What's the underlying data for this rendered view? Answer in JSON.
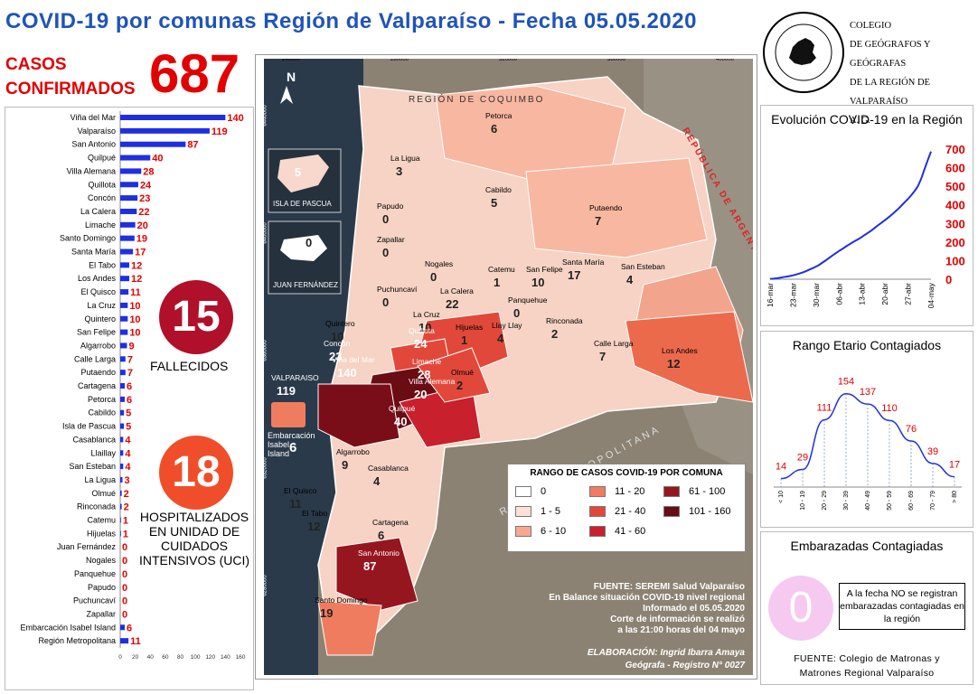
{
  "header": {
    "title": "COVID-19 por comunas Región de Valparaíso - Fecha 05.05.2020",
    "casos_line1": "CASOS",
    "casos_line2": "CONFIRMADOS",
    "casos_value": "687"
  },
  "college": {
    "line1": "COLEGIO",
    "line2": "DE GEÓGRAFOS Y GEÓGRAFAS",
    "line3": "DE LA REGIÓN DE VALPARAÍSO",
    "line4": "A. G."
  },
  "fallecidos": {
    "value": "15",
    "label": "FALLECIDOS"
  },
  "hospitalizados": {
    "value": "18",
    "label": "HOSPITALIZADOS EN UNIDAD DE CUIDADOS INTENSIVOS (UCI)"
  },
  "legend": {
    "title": "RANGO DE CASOS COVID-19 POR COMUNA",
    "items": [
      {
        "label": "0",
        "color": "#ffffff"
      },
      {
        "label": "1 - 5",
        "color": "#fde0d6"
      },
      {
        "label": "6 - 10",
        "color": "#f7a88e"
      },
      {
        "label": "11 - 20",
        "color": "#f07c60"
      },
      {
        "label": "21 - 40",
        "color": "#e2483a"
      },
      {
        "label": "41 - 60",
        "color": "#c8202c"
      },
      {
        "label": "61 - 100",
        "color": "#961620"
      },
      {
        "label": "101 - 160",
        "color": "#6a0c14"
      }
    ]
  },
  "map_text": {
    "fuente": [
      "FUENTE: SEREMI Salud Valparaíso",
      "En Balance situación COVID-19 nivel regional",
      "Informado el 05.05.2020",
      "Corte de información se realizó",
      "a las 21:00 horas del 04 mayo"
    ],
    "elaboracion": [
      "ELABORACIÓN: Ingrid Ibarra Amaya",
      "Geógrafa - Registro N° 0027"
    ],
    "region_coquimbo": "REGIÓN DE COQUIMBO",
    "region_metropolitana": "REGIÓN METROPOLITANA",
    "argentina": "REPÚBLICA DE ARGENTINA",
    "isla_pascua": "ISLA DE PASCUA",
    "isla_pascua_num": "5",
    "juan_fernandez": "JUAN FERNÁNDEZ",
    "juan_fernandez_num": "0",
    "embarcacion": "Embarcación Isabel Island",
    "embarcacion_num": "6",
    "north": "N",
    "comunas": [
      {
        "name": "Petorca",
        "value": "6"
      },
      {
        "name": "La Ligua",
        "value": "3"
      },
      {
        "name": "Cabildo",
        "value": "5"
      },
      {
        "name": "Putaendo",
        "value": "7"
      },
      {
        "name": "Papudo",
        "value": "0"
      },
      {
        "name": "Zapallar",
        "value": "0"
      },
      {
        "name": "Nogales",
        "value": "0"
      },
      {
        "name": "Catemu",
        "value": "1"
      },
      {
        "name": "San Felipe",
        "value": "10"
      },
      {
        "name": "Santa María",
        "value": "17"
      },
      {
        "name": "San Esteban",
        "value": "4"
      },
      {
        "name": "Puchuncaví",
        "value": "0"
      },
      {
        "name": "La Calera",
        "value": "22"
      },
      {
        "name": "Panquehue",
        "value": "0"
      },
      {
        "name": "Quintero",
        "value": "10"
      },
      {
        "name": "La Cruz",
        "value": "10"
      },
      {
        "name": "Hijuelas",
        "value": "1"
      },
      {
        "name": "Llay Llay",
        "value": "4"
      },
      {
        "name": "Rinconada",
        "value": "2"
      },
      {
        "name": "Concón",
        "value": "23"
      },
      {
        "name": "Quillota",
        "value": "24"
      },
      {
        "name": "Calle Larga",
        "value": "7"
      },
      {
        "name": "Los Andes",
        "value": "12"
      },
      {
        "name": "Viña del Mar",
        "value": "140"
      },
      {
        "name": "Limache",
        "value": "28"
      },
      {
        "name": "Villa Alemana",
        "value": "20"
      },
      {
        "name": "Olmué",
        "value": "2"
      },
      {
        "name": "VALPARAISO",
        "value": "119"
      },
      {
        "name": "Quilpué",
        "value": "40"
      },
      {
        "name": "Algarrobo",
        "value": "9"
      },
      {
        "name": "Casablanca",
        "value": "4"
      },
      {
        "name": "El Quisco",
        "value": "11"
      },
      {
        "name": "El Tabo",
        "value": "12"
      },
      {
        "name": "Cartagena",
        "value": "6"
      },
      {
        "name": "San Antonio",
        "value": "87"
      },
      {
        "name": "Santo Domingo",
        "value": "19"
      }
    ],
    "coord_top": [
      "240000",
      "280000",
      "320000",
      "360000",
      "400000"
    ],
    "coord_left": [
      "6440000",
      "6400000",
      "6360000",
      "6320000",
      "6280000"
    ]
  },
  "evolution": {
    "title": "Evolución COVID-19 en la Región"
  },
  "age": {
    "title": "Rango Etario Contagiados"
  },
  "embarazadas": {
    "title": "Embarazadas Contagiadas",
    "value": "0",
    "note": "A la fecha NO se registran embarazadas contagiadas en la región",
    "source_line1": "FUENTE: Colegio de Matronas y",
    "source_line2": "Matrones Regional Valparaíso"
  },
  "chart_data": [
    {
      "type": "bar",
      "orientation": "horizontal",
      "categories": [
        "Viña del Mar",
        "Valparaíso",
        "San Antonio",
        "Quilpué",
        "Villa Alemana",
        "Quillota",
        "Concón",
        "La Calera",
        "Limache",
        "Santo Domingo",
        "Santa María",
        "El Tabo",
        "Los Andes",
        "El Quisco",
        "La Cruz",
        "Quintero",
        "San Felipe",
        "Algarrobo",
        "Calle Larga",
        "Putaendo",
        "Cartagena",
        "Petorca",
        "Cabildo",
        "Isla de Pascua",
        "Casablanca",
        "Llaillay",
        "San Esteban",
        "La Ligua",
        "Olmué",
        "Rinconada",
        "Catemu",
        "Hijuelas",
        "Juan Fernández",
        "Nogales",
        "Panquehue",
        "Papudo",
        "Puchuncaví",
        "Zapallar",
        "Embarcación Isabel Island",
        "Región Metropolitana"
      ],
      "values": [
        140,
        119,
        87,
        40,
        28,
        24,
        23,
        22,
        20,
        19,
        17,
        12,
        12,
        11,
        10,
        10,
        10,
        9,
        7,
        7,
        6,
        6,
        5,
        5,
        4,
        4,
        4,
        3,
        2,
        2,
        1,
        1,
        0,
        0,
        0,
        0,
        0,
        0,
        6,
        11
      ],
      "xlim": [
        0,
        160
      ],
      "xticks": [
        "0",
        "20",
        "40",
        "60",
        "80",
        "100",
        "120",
        "140",
        "160"
      ],
      "bar_color": "#1f2fe0",
      "label_color": "#e20000"
    },
    {
      "type": "line",
      "title": "Evolución COVID-19 en la Región",
      "x": [
        "16-mar",
        "17-mar",
        "18-mar",
        "19-mar",
        "20-mar",
        "21-mar",
        "22-mar",
        "23-mar",
        "24-mar",
        "25-mar",
        "26-mar",
        "27-mar",
        "28-mar",
        "29-mar",
        "30-mar",
        "31-mar",
        "01-abr",
        "02-abr",
        "03-abr",
        "04-abr",
        "05-abr",
        "06-abr",
        "07-abr",
        "08-abr",
        "09-abr",
        "10-abr",
        "11-abr",
        "12-abr",
        "13-abr",
        "14-abr",
        "15-abr",
        "16-abr",
        "17-abr",
        "18-abr",
        "19-abr",
        "20-abr",
        "21-abr",
        "22-abr",
        "23-abr",
        "24-abr",
        "25-abr",
        "26-abr",
        "27-abr",
        "28-abr",
        "29-abr",
        "30-abr",
        "01-may",
        "02-may",
        "03-may",
        "04-may"
      ],
      "values": [
        2,
        3,
        5,
        8,
        11,
        14,
        17,
        21,
        26,
        31,
        37,
        44,
        52,
        60,
        68,
        78,
        90,
        102,
        115,
        128,
        140,
        152,
        163,
        175,
        186,
        197,
        207,
        217,
        228,
        240,
        252,
        264,
        278,
        292,
        305,
        318,
        332,
        346,
        362,
        378,
        396,
        414,
        432,
        452,
        474,
        500,
        540,
        590,
        640,
        687
      ],
      "xtick_labels": [
        "16-mar",
        "23-mar",
        "30-mar",
        "06-abr",
        "13-abr",
        "20-abr",
        "27-abr",
        "04-may"
      ],
      "ylim": [
        0,
        700
      ],
      "yticks": [
        "0",
        "100",
        "200",
        "300",
        "400",
        "500",
        "600",
        "700"
      ],
      "color": "#1f2fe0",
      "tick_color": "#e20000"
    },
    {
      "type": "line",
      "title": "Rango Etario Contagiados",
      "categories": [
        "< 10",
        "10 - 19",
        "20 - 29",
        "30 - 39",
        "40 - 49",
        "50 - 59",
        "60 - 69",
        "70 - 79",
        "> 80"
      ],
      "values": [
        14,
        29,
        111,
        154,
        137,
        110,
        76,
        39,
        17
      ],
      "ylim": [
        0,
        170
      ],
      "color": "#1f2fe0",
      "label_color": "#e20000"
    }
  ]
}
